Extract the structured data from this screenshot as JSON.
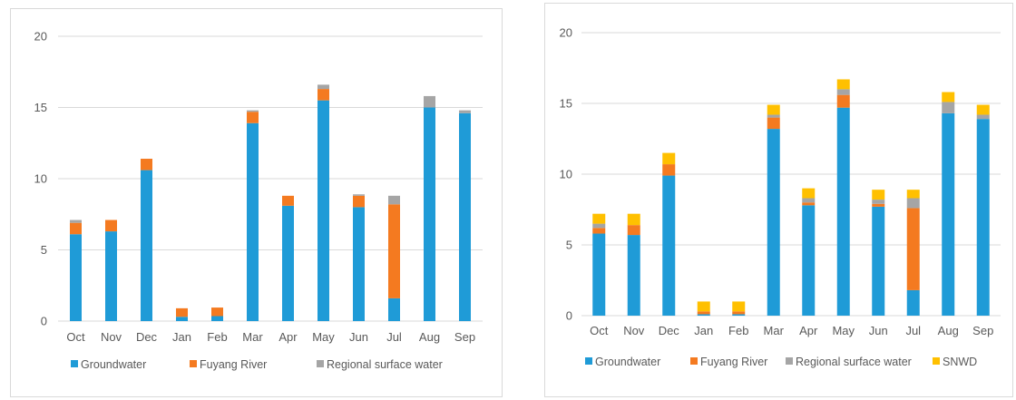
{
  "colors": {
    "groundwater": "#1f9bd7",
    "fuyang_river": "#f47a20",
    "regional_surface_water": "#a5a5a5",
    "snwd": "#ffc000",
    "grid": "#d9d9d9",
    "text": "#595959"
  },
  "chart_data": [
    {
      "type": "bar",
      "stacked": true,
      "categories": [
        "Oct",
        "Nov",
        "Dec",
        "Jan",
        "Feb",
        "Mar",
        "Apr",
        "May",
        "Jun",
        "Jul",
        "Aug",
        "Sep"
      ],
      "yticks": [
        "0",
        "5",
        "10",
        "15",
        "20"
      ],
      "ylim": [
        0,
        20
      ],
      "grid": true,
      "legend_position": "bottom",
      "series": [
        {
          "name": "Groundwater",
          "color_key": "groundwater",
          "values": [
            6.1,
            6.3,
            10.6,
            0.3,
            0.35,
            13.9,
            8.1,
            15.5,
            8.0,
            1.6,
            15.0,
            14.6
          ]
        },
        {
          "name": "Fuyang River",
          "color_key": "fuyang_river",
          "values": [
            0.8,
            0.8,
            0.8,
            0.6,
            0.6,
            0.8,
            0.7,
            0.8,
            0.8,
            6.6,
            0.0,
            0.0
          ]
        },
        {
          "name": "Regional surface water",
          "color_key": "regional_surface_water",
          "values": [
            0.2,
            0.0,
            0.0,
            0.0,
            0.0,
            0.1,
            0.0,
            0.3,
            0.1,
            0.6,
            0.8,
            0.2
          ]
        }
      ]
    },
    {
      "type": "bar",
      "stacked": true,
      "categories": [
        "Oct",
        "Nov",
        "Dec",
        "Jan",
        "Feb",
        "Mar",
        "Apr",
        "May",
        "Jun",
        "Jul",
        "Aug",
        "Sep"
      ],
      "yticks": [
        "0",
        "5",
        "10",
        "15",
        "20"
      ],
      "ylim": [
        0,
        20
      ],
      "grid": true,
      "legend_position": "bottom",
      "series": [
        {
          "name": "Groundwater",
          "color_key": "groundwater",
          "values": [
            5.8,
            5.7,
            9.9,
            0.1,
            0.1,
            13.2,
            7.8,
            14.7,
            7.7,
            1.8,
            14.3,
            13.9
          ]
        },
        {
          "name": "Fuyang River",
          "color_key": "fuyang_river",
          "values": [
            0.4,
            0.7,
            0.8,
            0.2,
            0.2,
            0.8,
            0.2,
            0.9,
            0.2,
            5.8,
            0.0,
            0.0
          ]
        },
        {
          "name": "Regional surface water",
          "color_key": "regional_surface_water",
          "values": [
            0.3,
            0.0,
            0.0,
            0.0,
            0.0,
            0.2,
            0.3,
            0.4,
            0.3,
            0.7,
            0.8,
            0.3
          ]
        },
        {
          "name": "SNWD",
          "color_key": "snwd",
          "values": [
            0.7,
            0.8,
            0.8,
            0.7,
            0.7,
            0.7,
            0.7,
            0.7,
            0.7,
            0.6,
            0.7,
            0.7
          ]
        }
      ]
    }
  ]
}
